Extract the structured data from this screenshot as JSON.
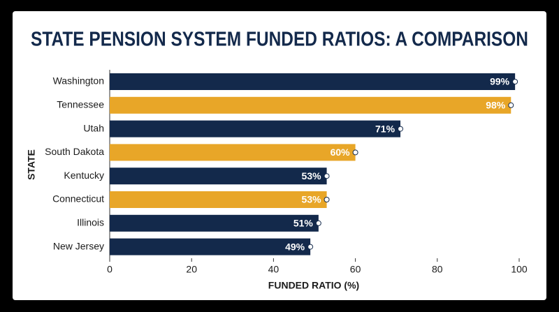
{
  "chart_data": {
    "type": "bar",
    "orientation": "horizontal",
    "title": "STATE PENSION SYSTEM FUNDED RATIOS: A COMPARISON",
    "x_label": "FUNDED RATIO (%)",
    "y_label": "STATE",
    "categories": [
      "Washington",
      "Tennessee",
      "Utah",
      "South Dakota",
      "Kentucky",
      "Connecticut",
      "Illinois",
      "New Jersey"
    ],
    "values": [
      99,
      98,
      71,
      60,
      53,
      53,
      51,
      49
    ],
    "value_labels": [
      "99%",
      "98%",
      "71%",
      "60%",
      "53%",
      "53%",
      "51%",
      "49%"
    ],
    "colors": [
      "#13294b",
      "#e8a628",
      "#13294b",
      "#e8a628",
      "#13294b",
      "#e8a628",
      "#13294b",
      "#13294b"
    ],
    "xlim": [
      0,
      100
    ],
    "xticks": [
      0,
      20,
      40,
      60,
      80,
      100
    ],
    "grid": false
  }
}
